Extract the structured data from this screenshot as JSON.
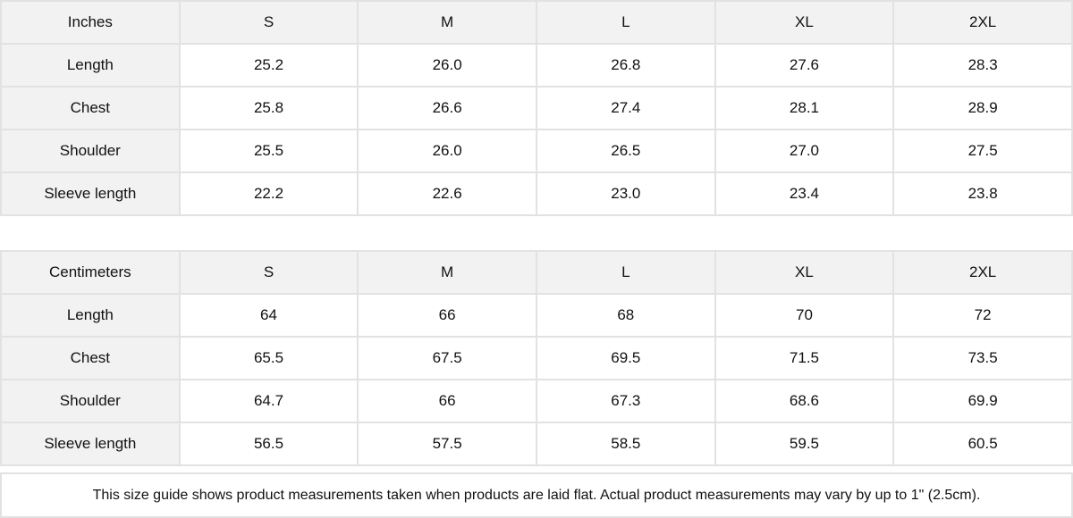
{
  "inches": {
    "header": [
      "Inches",
      "S",
      "M",
      "L",
      "XL",
      "2XL"
    ],
    "rows": [
      [
        "Length",
        "25.2",
        "26.0",
        "26.8",
        "27.6",
        "28.3"
      ],
      [
        "Chest",
        "25.8",
        "26.6",
        "27.4",
        "28.1",
        "28.9"
      ],
      [
        "Shoulder",
        "25.5",
        "26.0",
        "26.5",
        "27.0",
        "27.5"
      ],
      [
        "Sleeve length",
        "22.2",
        "22.6",
        "23.0",
        "23.4",
        "23.8"
      ]
    ]
  },
  "centimeters": {
    "header": [
      "Centimeters",
      "S",
      "M",
      "L",
      "XL",
      "2XL"
    ],
    "rows": [
      [
        "Length",
        "64",
        "66",
        "68",
        "70",
        "72"
      ],
      [
        "Chest",
        "65.5",
        "67.5",
        "69.5",
        "71.5",
        "73.5"
      ],
      [
        "Shoulder",
        "64.7",
        "66",
        "67.3",
        "68.6",
        "69.9"
      ],
      [
        "Sleeve length",
        "56.5",
        "57.5",
        "58.5",
        "59.5",
        "60.5"
      ]
    ]
  },
  "note": "This size guide shows product measurements taken when products are laid flat.  Actual product measurements may vary by up to 1\" (2.5cm).",
  "colors": {
    "header_bg": "#f2f2f2",
    "border": "#e2e2e2",
    "text": "#111111"
  }
}
